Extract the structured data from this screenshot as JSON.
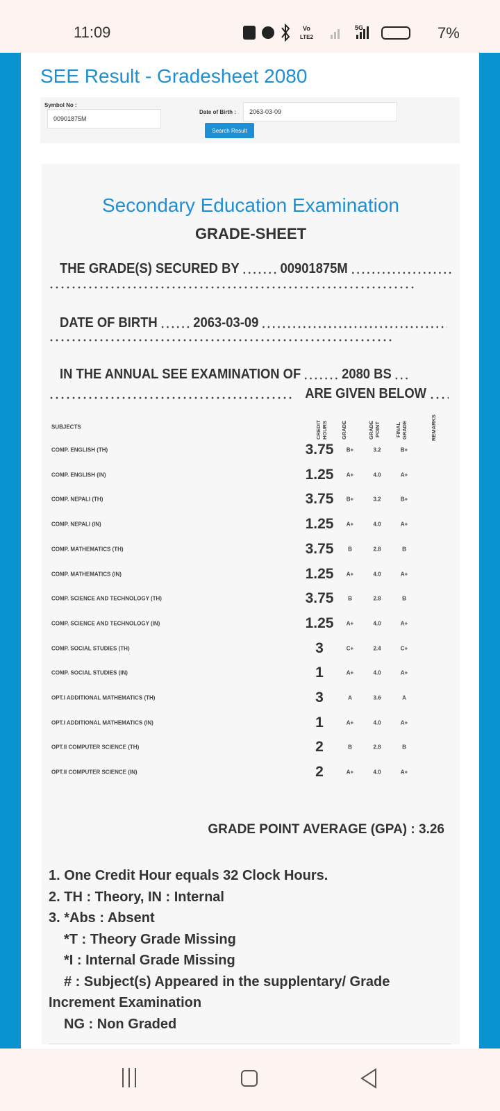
{
  "status_bar": {
    "time": "11:09",
    "volte": "Vo",
    "lte": "LTE2",
    "network": "5G",
    "battery": "7%"
  },
  "header": {
    "title": "SEE Result - Gradesheet 2080"
  },
  "form": {
    "symbol_label": "Symbol No :",
    "symbol_value": "00901875M",
    "dob_label": "Date of Birth :",
    "dob_value": "2063-03-09",
    "button": "Search Result"
  },
  "sheet": {
    "title": "Secondary Education Examination",
    "subtitle": "GRADE-SHEET",
    "secured_by": {
      "prefix": "THE GRADE(S) SECURED BY",
      "value": "00901875M"
    },
    "dob": {
      "prefix": "DATE OF BIRTH",
      "value": "2063-03-09"
    },
    "exam": {
      "prefix": "IN THE ANNUAL SEE EXAMINATION OF",
      "value": "2080 BS",
      "suffix": "ARE GIVEN BELOW"
    }
  },
  "table": {
    "headers": [
      "SUBJECTS",
      "CREDIT HOURS",
      "GRADE",
      "GRADE POINT",
      "FINAL GRADE",
      "REMARKS"
    ],
    "rows": [
      [
        "COMP. ENGLISH (TH)",
        "3.75",
        "B+",
        "3.2",
        "B+"
      ],
      [
        "COMP. ENGLISH (IN)",
        "1.25",
        "A+",
        "4.0",
        "A+"
      ],
      [
        "COMP. NEPALI (TH)",
        "3.75",
        "B+",
        "3.2",
        "B+"
      ],
      [
        "COMP. NEPALI (IN)",
        "1.25",
        "A+",
        "4.0",
        "A+"
      ],
      [
        "COMP. MATHEMATICS (TH)",
        "3.75",
        "B",
        "2.8",
        "B"
      ],
      [
        "COMP. MATHEMATICS (IN)",
        "1.25",
        "A+",
        "4.0",
        "A+"
      ],
      [
        "COMP. SCIENCE AND TECHNOLOGY (TH)",
        "3.75",
        "B",
        "2.8",
        "B"
      ],
      [
        "COMP. SCIENCE AND TECHNOLOGY (IN)",
        "1.25",
        "A+",
        "4.0",
        "A+"
      ],
      [
        "COMP. SOCIAL STUDIES (TH)",
        "3",
        "C+",
        "2.4",
        "C+"
      ],
      [
        "COMP. SOCIAL STUDIES (IN)",
        "1",
        "A+",
        "4.0",
        "A+"
      ],
      [
        "OPT.I ADDITIONAL MATHEMATICS (TH)",
        "3",
        "A",
        "3.6",
        "A"
      ],
      [
        "OPT.I ADDITIONAL MATHEMATICS (IN)",
        "1",
        "A+",
        "4.0",
        "A+"
      ],
      [
        "OPT.II COMPUTER SCIENCE (TH)",
        "2",
        "B",
        "2.8",
        "B"
      ],
      [
        "OPT.II COMPUTER SCIENCE (IN)",
        "2",
        "A+",
        "4.0",
        "A+"
      ]
    ]
  },
  "gpa": {
    "label": "GRADE POINT AVERAGE (GPA) :",
    "value": "3.26"
  },
  "notes": [
    "1. One Credit Hour equals 32 Clock Hours.",
    "2. TH : Theory, IN : Internal",
    "3. *Abs : Absent",
    "*T : Theory Grade Missing",
    "*I : Internal Grade Missing",
    "# : Subject(s) Appeared in the supplentary/ Grade Increment Examination",
    "NG : Non Graded"
  ]
}
